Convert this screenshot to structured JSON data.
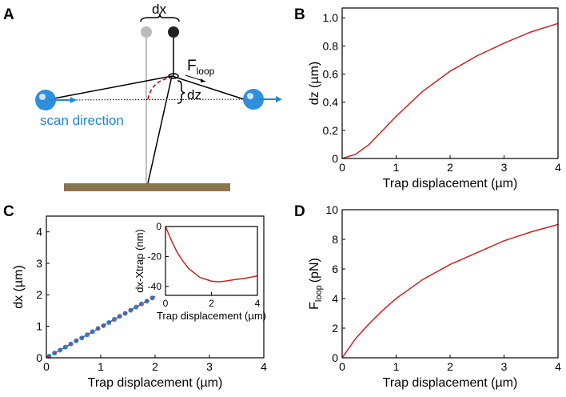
{
  "panels": [
    "A",
    "B",
    "C",
    "D"
  ],
  "diagram": {
    "dx": "dx",
    "force": "F",
    "force_sub": "loop",
    "dz": "dz",
    "scan": "scan direction"
  },
  "chart_data": [
    {
      "type": "line",
      "xlabel": "Trap displacement (µm)",
      "ylabel": "dz (µm)",
      "x": [
        0,
        0.25,
        0.5,
        0.75,
        1,
        1.25,
        1.5,
        1.75,
        2,
        2.5,
        3,
        3.5,
        4
      ],
      "values": [
        0,
        0.03,
        0.1,
        0.2,
        0.3,
        0.39,
        0.48,
        0.55,
        0.62,
        0.73,
        0.82,
        0.9,
        0.96
      ],
      "color": "#d21f1f",
      "xlim": [
        0,
        4
      ],
      "xticks": [
        0,
        1,
        2,
        3,
        4
      ],
      "ylim": [
        0,
        1.07
      ],
      "yticks": [
        0,
        0.2,
        0.4,
        0.6,
        0.8,
        {
          "value": 1,
          "label": "1.0"
        }
      ]
    },
    {
      "type": "scatter",
      "xlabel": "Trap displacement (µm)",
      "ylabel": "dx (µm)",
      "series": [
        {
          "color": "#1f87d6",
          "x": [
            0.05,
            0.15,
            0.25,
            0.35,
            0.45,
            0.55,
            0.65,
            0.75,
            0.85,
            0.95,
            1.05,
            1.15,
            1.25,
            1.35,
            1.45,
            1.55,
            1.65,
            1.75,
            1.85,
            1.95
          ],
          "values": [
            0.05,
            0.15,
            0.24,
            0.34,
            0.44,
            0.54,
            0.63,
            0.73,
            0.83,
            0.93,
            1.02,
            1.12,
            1.22,
            1.32,
            1.41,
            1.51,
            1.61,
            1.71,
            1.8,
            1.9
          ]
        },
        {
          "color": "#c0283a",
          "dashed": true,
          "x": [
            0,
            2
          ],
          "values": [
            0,
            1.95
          ]
        }
      ],
      "xlim": [
        0,
        4
      ],
      "xticks": [
        0,
        1,
        2,
        3,
        4
      ],
      "ylim": [
        0,
        4.5
      ],
      "yticks": [
        0,
        1,
        2,
        3,
        4
      ]
    },
    {
      "type": "line",
      "xlabel": "Trap displacement (µm)",
      "ylabel": "F",
      "ylabel_sub": "loop",
      "ylabel_unit": "(pN)",
      "x": [
        0,
        0.25,
        0.5,
        0.75,
        1,
        1.5,
        2,
        2.5,
        3,
        3.5,
        4
      ],
      "values": [
        0,
        1.3,
        2.3,
        3.2,
        4.0,
        5.3,
        6.3,
        7.1,
        7.9,
        8.5,
        9.0
      ],
      "color": "#d21f1f",
      "xlim": [
        0,
        4
      ],
      "xticks": [
        0,
        1,
        2,
        3,
        4
      ],
      "ylim": [
        0,
        10
      ],
      "yticks": [
        0,
        2,
        4,
        6,
        8,
        10
      ]
    },
    {
      "type": "line",
      "xlabel": "Trap displacement (µm)",
      "ylabel": "dx-Xtrap (nm)",
      "x": [
        0,
        0.25,
        0.5,
        0.75,
        1,
        1.5,
        2,
        2.3,
        2.6,
        3,
        3.5,
        4
      ],
      "values": [
        0,
        -9,
        -17,
        -23,
        -28,
        -34,
        -36.5,
        -37,
        -36.5,
        -35.5,
        -34.5,
        -33
      ],
      "color": "#d21f1f",
      "xlim": [
        0,
        4
      ],
      "xticks": [
        0,
        2,
        4
      ],
      "ylim": [
        -46,
        0
      ],
      "yticks": [
        0,
        -20,
        -40
      ]
    }
  ]
}
